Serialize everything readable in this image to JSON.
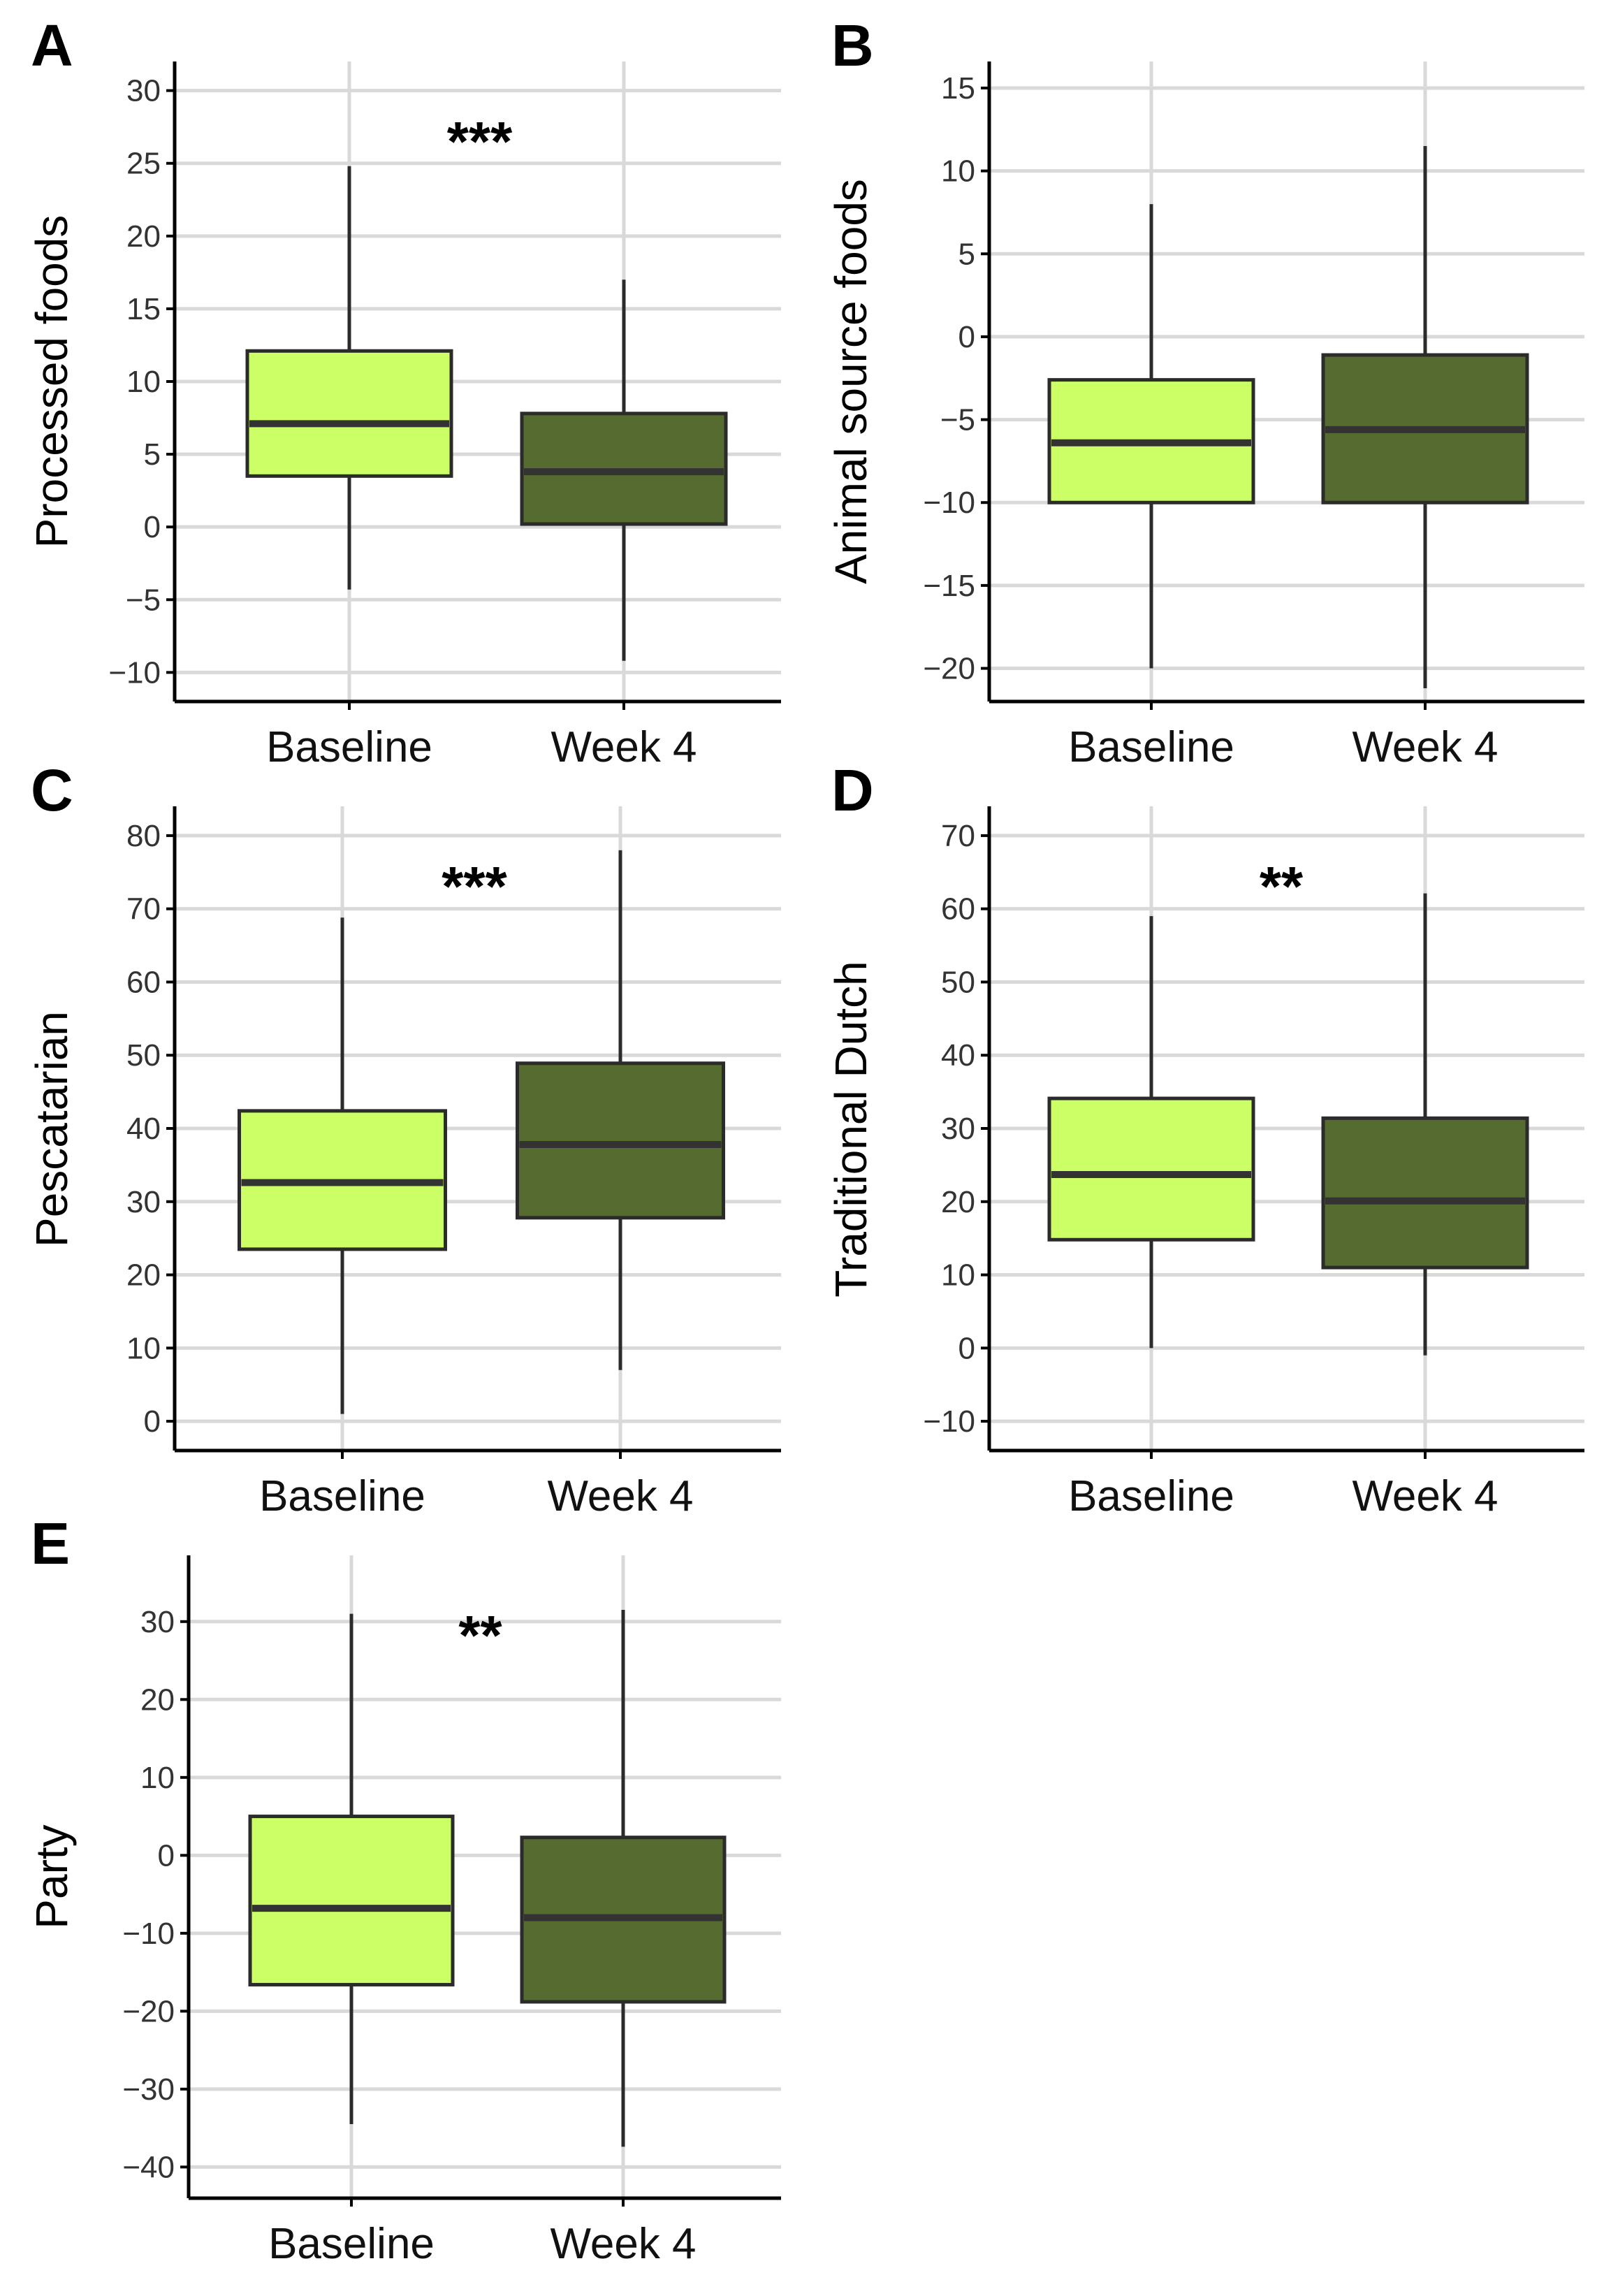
{
  "colors": {
    "baseline": "#ccff66",
    "week4": "#556b2f"
  },
  "chart_data": [
    {
      "type": "box",
      "panel": "A",
      "ylabel": "Processed foods",
      "ylim": [
        -12,
        32
      ],
      "yticks": [
        -10,
        -5,
        0,
        5,
        10,
        15,
        20,
        25,
        30
      ],
      "categories": [
        "Baseline",
        "Week 4"
      ],
      "significance": "***",
      "boxes": [
        {
          "name": "Baseline",
          "whisker_low": -4.3,
          "q1": 3.5,
          "median": 7.1,
          "q3": 12.1,
          "whisker_high": 24.8
        },
        {
          "name": "Week 4",
          "whisker_low": -9.2,
          "q1": 0.2,
          "median": 3.8,
          "q3": 7.8,
          "whisker_high": 17.0
        }
      ]
    },
    {
      "type": "box",
      "panel": "B",
      "ylabel": "Animal source foods",
      "ylim": [
        -22,
        16.6
      ],
      "yticks": [
        -20,
        -15,
        -10,
        -5,
        0,
        5,
        10,
        15
      ],
      "categories": [
        "Baseline",
        "Week 4"
      ],
      "significance": "",
      "boxes": [
        {
          "name": "Baseline",
          "whisker_low": -20.0,
          "q1": -10.0,
          "median": -6.4,
          "q3": -2.6,
          "whisker_high": 8.0
        },
        {
          "name": "Week 4",
          "whisker_low": -21.2,
          "q1": -10.0,
          "median": -5.6,
          "q3": -1.1,
          "whisker_high": 11.5
        }
      ]
    },
    {
      "type": "box",
      "panel": "C",
      "ylabel": "Pescatarian",
      "ylim": [
        -4,
        84
      ],
      "yticks": [
        0,
        10,
        20,
        30,
        40,
        50,
        60,
        70,
        80
      ],
      "categories": [
        "Baseline",
        "Week 4"
      ],
      "significance": "***",
      "boxes": [
        {
          "name": "Baseline",
          "whisker_low": 1.0,
          "q1": 23.5,
          "median": 32.6,
          "q3": 42.4,
          "whisker_high": 68.8
        },
        {
          "name": "Week 4",
          "whisker_low": 7.0,
          "q1": 27.8,
          "median": 37.8,
          "q3": 48.9,
          "whisker_high": 78.0
        }
      ]
    },
    {
      "type": "box",
      "panel": "D",
      "ylabel": "Traditional Dutch",
      "ylim": [
        -14,
        74
      ],
      "yticks": [
        -10,
        0,
        10,
        20,
        30,
        40,
        50,
        60,
        70
      ],
      "categories": [
        "Baseline",
        "Week 4"
      ],
      "significance": "**",
      "boxes": [
        {
          "name": "Baseline",
          "whisker_low": 0.0,
          "q1": 14.8,
          "median": 23.7,
          "q3": 34.1,
          "whisker_high": 59.0
        },
        {
          "name": "Week 4",
          "whisker_low": -1.0,
          "q1": 11.0,
          "median": 20.1,
          "q3": 31.4,
          "whisker_high": 62.1
        }
      ]
    },
    {
      "type": "box",
      "panel": "E",
      "ylabel": "Party",
      "ylim": [
        -44,
        38.5
      ],
      "yticks": [
        -40,
        -30,
        -20,
        -10,
        0,
        10,
        20,
        30
      ],
      "categories": [
        "Baseline",
        "Week 4"
      ],
      "significance": "**",
      "boxes": [
        {
          "name": "Baseline",
          "whisker_low": -34.5,
          "q1": -16.6,
          "median": -6.8,
          "q3": 5.0,
          "whisker_high": 31.0
        },
        {
          "name": "Week 4",
          "whisker_low": -37.4,
          "q1": -18.8,
          "median": -8.0,
          "q3": 2.3,
          "whisker_high": 31.5
        }
      ]
    }
  ]
}
